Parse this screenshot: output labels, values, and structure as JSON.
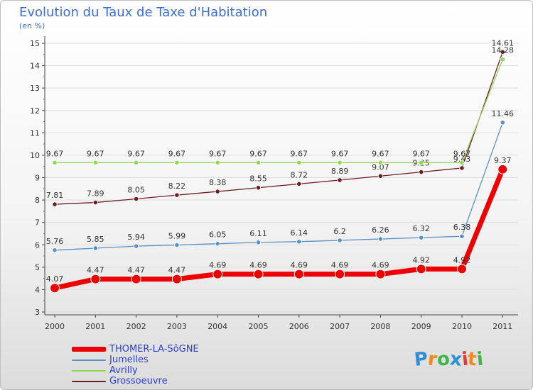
{
  "chart_data": {
    "type": "line",
    "title": "Evolution du Taux de Taxe d'Habitation",
    "subtitle": "(en %)",
    "ylim": [
      3,
      15
    ],
    "yticks": [
      "3",
      "4",
      "5",
      "6",
      "7",
      "8",
      "9",
      "10",
      "11",
      "12",
      "13",
      "14",
      "15"
    ],
    "categories": [
      "2000",
      "2001",
      "2002",
      "2003",
      "2004",
      "2005",
      "2006",
      "2007",
      "2008",
      "2009",
      "2010",
      "2011"
    ],
    "series": [
      {
        "name": "THOMER-LA-SôGNE",
        "color": "#ee0000",
        "values": [
          4.07,
          4.47,
          4.47,
          4.47,
          4.69,
          4.69,
          4.69,
          4.69,
          4.69,
          4.92,
          4.92,
          9.37
        ],
        "labels": [
          "4.07",
          "4.47",
          "4.47",
          "4.47",
          "4.69",
          "4.69",
          "4.69",
          "4.69",
          "4.69",
          "4.92",
          "4.92",
          "9.37"
        ]
      },
      {
        "name": "Jumelles",
        "color": "#5b92c6",
        "values": [
          5.76,
          5.85,
          5.94,
          5.99,
          6.05,
          6.11,
          6.14,
          6.2,
          6.26,
          6.32,
          6.38,
          11.46
        ],
        "labels": [
          "5.76",
          "5.85",
          "5.94",
          "5.99",
          "6.05",
          "6.11",
          "6.14",
          "6.2",
          "6.26",
          "6.32",
          "6.38",
          "11.46"
        ]
      },
      {
        "name": "Avrilly",
        "color": "#8fd94f",
        "values": [
          9.67,
          9.67,
          9.67,
          9.67,
          9.67,
          9.67,
          9.67,
          9.67,
          9.67,
          9.67,
          9.67,
          14.28
        ],
        "labels": [
          "9.67",
          "9.67",
          "9.67",
          "9.67",
          "9.67",
          "9.67",
          "9.67",
          "9.67",
          "9.67",
          "9.67",
          "9.67",
          "14.28"
        ]
      },
      {
        "name": "Grossoeuvre",
        "color": "#6e1f24",
        "values": [
          7.81,
          7.89,
          8.05,
          8.22,
          8.38,
          8.55,
          8.72,
          8.89,
          9.07,
          9.25,
          9.43,
          14.61
        ],
        "labels": [
          "7.81",
          "7.89",
          "8.05",
          "8.22",
          "8.38",
          "8.55",
          "8.72",
          "8.89",
          "9.07",
          "9.25",
          "9.43",
          "14.61"
        ]
      }
    ]
  },
  "logo": {
    "letters": [
      "P",
      "r",
      "o",
      "x",
      "i",
      "t",
      "i"
    ],
    "colors": [
      "#2e8fd8",
      "#f08a1c",
      "#3fb44a",
      "#2e8fd8",
      "#e23b3b",
      "#f08a1c",
      "#3fb44a"
    ]
  }
}
